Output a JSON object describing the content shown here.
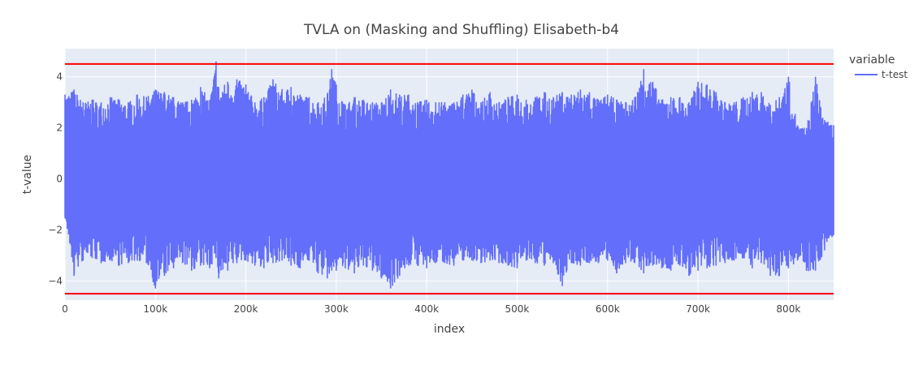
{
  "chart_data": {
    "type": "line",
    "title": "TVLA on (Masking and Shuffling) Elisabeth-b4",
    "xlabel": "index",
    "ylabel": "t-value",
    "xlim": [
      0,
      850000
    ],
    "ylim": [
      -4.75,
      5.1
    ],
    "xticks": [
      0,
      100000,
      200000,
      300000,
      400000,
      500000,
      600000,
      700000,
      800000
    ],
    "xtick_labels": [
      "0",
      "100k",
      "200k",
      "300k",
      "400k",
      "500k",
      "600k",
      "700k",
      "800k"
    ],
    "yticks": [
      -4,
      -2,
      0,
      2,
      4
    ],
    "ytick_labels": [
      "−4",
      "−2",
      "0",
      "2",
      "4"
    ],
    "grid": true,
    "legend": {
      "title": "variable",
      "position": "top-right"
    },
    "colors": {
      "series": "#636efa",
      "threshold": "#ff0000",
      "plot_bg": "#e5ecf6",
      "grid": "#ffffff"
    },
    "thresholds": [
      4.5,
      -4.5
    ],
    "series": [
      {
        "name": "t-test",
        "x": [
          0,
          10000,
          20000,
          30000,
          40000,
          50000,
          60000,
          70000,
          80000,
          90000,
          100000,
          110000,
          120000,
          130000,
          140000,
          150000,
          160000,
          167000,
          170000,
          180000,
          190000,
          200000,
          210000,
          220000,
          230000,
          240000,
          250000,
          260000,
          270000,
          280000,
          290000,
          295000,
          300000,
          310000,
          320000,
          330000,
          340000,
          350000,
          360000,
          370000,
          380000,
          390000,
          400000,
          410000,
          420000,
          430000,
          440000,
          450000,
          460000,
          470000,
          480000,
          490000,
          500000,
          510000,
          520000,
          530000,
          540000,
          550000,
          560000,
          570000,
          580000,
          590000,
          600000,
          610000,
          620000,
          630000,
          640000,
          650000,
          660000,
          670000,
          680000,
          690000,
          700000,
          710000,
          720000,
          730000,
          740000,
          750000,
          760000,
          770000,
          780000,
          790000,
          800000,
          810000,
          820000,
          830000,
          840000,
          850000
        ],
        "upper": [
          3.3,
          3.5,
          3.0,
          3.1,
          3.0,
          3.2,
          3.1,
          3.0,
          3.3,
          3.2,
          3.5,
          3.4,
          3.2,
          3.0,
          3.1,
          3.6,
          3.1,
          4.6,
          3.6,
          3.8,
          3.9,
          3.7,
          3.0,
          3.2,
          3.9,
          3.5,
          3.6,
          3.3,
          3.2,
          3.0,
          3.3,
          4.3,
          3.7,
          2.9,
          3.2,
          3.1,
          3.0,
          3.0,
          3.5,
          3.3,
          3.3,
          3.0,
          3.1,
          3.0,
          3.0,
          3.0,
          3.3,
          3.5,
          3.0,
          3.4,
          3.0,
          3.2,
          3.3,
          3.1,
          3.2,
          3.4,
          3.2,
          3.4,
          3.3,
          3.5,
          3.4,
          3.1,
          3.3,
          3.1,
          3.0,
          3.2,
          4.3,
          3.8,
          3.1,
          3.2,
          3.2,
          3.0,
          3.8,
          3.7,
          3.4,
          3.0,
          3.0,
          3.2,
          3.4,
          3.4,
          2.9,
          3.2,
          4.0,
          2.1,
          2.0,
          4.0,
          2.3,
          2.1
        ],
        "lower": [
          -1.5,
          -3.8,
          -3.2,
          -3.1,
          -3.3,
          -3.2,
          -3.4,
          -3.3,
          -3.2,
          -3.3,
          -4.3,
          -3.8,
          -3.5,
          -3.3,
          -3.6,
          -3.4,
          -3.5,
          -3.1,
          -3.9,
          -3.6,
          -3.3,
          -3.2,
          -3.4,
          -3.5,
          -3.3,
          -3.2,
          -3.4,
          -3.5,
          -3.2,
          -3.7,
          -3.9,
          -3.6,
          -3.6,
          -3.5,
          -3.7,
          -3.4,
          -3.6,
          -3.9,
          -4.3,
          -3.8,
          -3.4,
          -3.4,
          -3.5,
          -3.3,
          -3.3,
          -3.4,
          -3.2,
          -3.2,
          -3.3,
          -3.2,
          -3.3,
          -3.4,
          -3.5,
          -3.2,
          -3.3,
          -3.4,
          -3.3,
          -4.2,
          -3.3,
          -3.4,
          -3.3,
          -3.3,
          -3.2,
          -3.7,
          -3.3,
          -3.3,
          -3.7,
          -3.4,
          -3.5,
          -3.6,
          -3.4,
          -3.8,
          -3.6,
          -3.5,
          -3.4,
          -3.3,
          -3.2,
          -3.1,
          -3.5,
          -3.3,
          -3.8,
          -3.8,
          -3.5,
          -3.2,
          -3.6,
          -3.6,
          -2.8,
          -2.2
        ]
      }
    ]
  }
}
